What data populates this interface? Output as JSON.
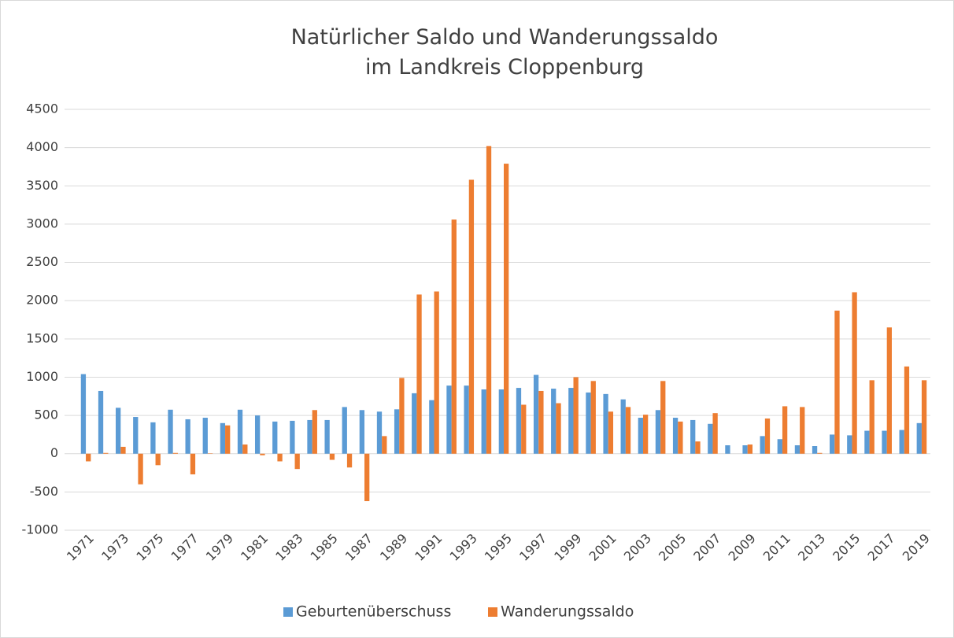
{
  "chart_data": {
    "type": "bar",
    "title": [
      "Natürlicher Saldo und Wanderungssaldo",
      "im Landkreis Cloppenburg"
    ],
    "categories": [
      "1971",
      null,
      "1973",
      null,
      "1975",
      null,
      "1977",
      null,
      "1979",
      null,
      "1981",
      null,
      "1983",
      null,
      "1985",
      null,
      "1987",
      null,
      "1989",
      null,
      "1991",
      null,
      "1993",
      null,
      "1995",
      null,
      "1997",
      null,
      "1999",
      null,
      "2001",
      null,
      "2003",
      null,
      "2005",
      null,
      "2007",
      null,
      "2009",
      null,
      "2011",
      null,
      "2013",
      null,
      "2015",
      null,
      "2017",
      null,
      "2019"
    ],
    "series": [
      {
        "name": "Geburtenüberschuss",
        "color": "#5b9bd5",
        "values": [
          1040,
          820,
          600,
          480,
          410,
          575,
          450,
          470,
          400,
          575,
          500,
          420,
          430,
          440,
          440,
          610,
          570,
          550,
          580,
          790,
          700,
          890,
          890,
          840,
          840,
          860,
          1030,
          850,
          860,
          800,
          780,
          710,
          470,
          570,
          470,
          440,
          390,
          110,
          110,
          230,
          190,
          110,
          100,
          250,
          240,
          300,
          300,
          310,
          400
        ]
      },
      {
        "name": "Wanderungssaldo",
        "color": "#ed7d31",
        "values": [
          -100,
          10,
          90,
          -400,
          -150,
          10,
          -270,
          5,
          370,
          120,
          -20,
          -100,
          -200,
          570,
          -80,
          -180,
          -620,
          230,
          990,
          2080,
          2120,
          3060,
          3580,
          4020,
          3790,
          640,
          820,
          660,
          1000,
          950,
          550,
          610,
          510,
          950,
          420,
          160,
          530,
          0,
          120,
          460,
          620,
          610,
          10,
          1870,
          2110,
          960,
          1650,
          1140,
          960
        ]
      }
    ],
    "ylim": [
      -1000,
      4500
    ],
    "yticks": [
      -1000,
      -500,
      0,
      500,
      1000,
      1500,
      2000,
      2500,
      3000,
      3500,
      4000,
      4500
    ],
    "grid": true,
    "legend": "bottom"
  }
}
